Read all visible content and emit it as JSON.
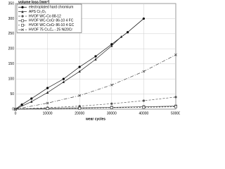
{
  "chart_data": {
    "type": "line",
    "y_label": "volume loss [mm³]",
    "x_label": "wear cycles",
    "xlim": [
      0,
      50000
    ],
    "xticks": [
      0,
      10000,
      20000,
      30000,
      40000,
      50000
    ],
    "ylim": [
      0,
      350
    ],
    "yticks": [
      0,
      50,
      100,
      150,
      200,
      250,
      300,
      350
    ],
    "grid": true,
    "legend": "upper-left",
    "series": [
      {
        "name": "electroplated hard chromium",
        "color": "#000000",
        "marker": "circle",
        "dash": "none",
        "x": [
          0,
          2000,
          5000,
          10000,
          15000,
          20000,
          25000,
          30000,
          35000,
          40000
        ],
        "values": [
          0,
          15,
          35,
          70,
          100,
          140,
          175,
          215,
          255,
          300
        ]
      },
      {
        "name": "APS Cr₂O₃",
        "color": "#222222",
        "marker": "triangle",
        "dash": "none",
        "x": [
          0,
          5000,
          10000,
          15000,
          20000,
          25000,
          30000,
          33000
        ],
        "values": [
          0,
          25,
          55,
          90,
          125,
          165,
          210,
          240
        ]
      },
      {
        "name": "HVOF WC-Co 88-12",
        "color": "#555555",
        "marker": "circle",
        "dash": "3,2",
        "x": [
          0,
          10000,
          20000,
          30000,
          40000,
          50000
        ],
        "values": [
          0,
          5,
          10,
          18,
          28,
          40
        ]
      },
      {
        "name": "HVOF WC-CoCr 86-10 4 FC",
        "color": "#333333",
        "marker": "square",
        "dash": "none",
        "x": [
          0,
          10000,
          20000,
          30000,
          40000,
          50000
        ],
        "values": [
          0,
          2,
          4,
          6,
          8,
          10
        ]
      },
      {
        "name": "HVOF WC-CoCr 86-10 4 GC",
        "color": "#333333",
        "marker": "square",
        "dash": "2,2",
        "x": [
          0,
          10000,
          20000,
          30000,
          40000,
          50000
        ],
        "values": [
          0,
          2,
          3,
          5,
          6,
          8
        ]
      },
      {
        "name": "HVOF 75 Cr₃C₂ - 25 Ni20Cr",
        "color": "#444444",
        "marker": "x",
        "dash": "5,2,1,2",
        "x": [
          0,
          10000,
          20000,
          30000,
          40000,
          50000
        ],
        "values": [
          0,
          20,
          45,
          80,
          125,
          180
        ]
      }
    ]
  }
}
